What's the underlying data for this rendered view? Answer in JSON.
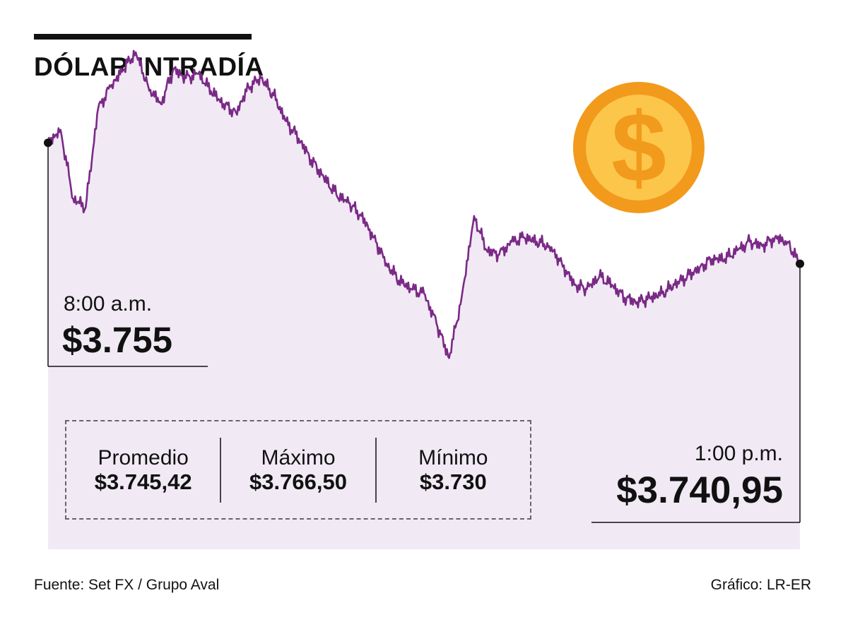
{
  "title": "DÓLAR INTRADÍA",
  "start": {
    "time": "8:00 a.m.",
    "value": "$3.755"
  },
  "end": {
    "time": "1:00 p.m.",
    "value": "$3.740,95"
  },
  "stats": [
    {
      "label": "Promedio",
      "value": "$3.745,42"
    },
    {
      "label": "Máximo",
      "value": "$3.766,50"
    },
    {
      "label": "Mínimo",
      "value": "$3.730"
    }
  ],
  "footer": {
    "source": "Fuente: Set FX / Grupo Aval",
    "credit": "Gráfico: LR-ER"
  },
  "colors": {
    "line": "#7a2a86",
    "area": "#f1eaf5",
    "coin_outer": "#f29a1c",
    "coin_inner": "#fcc64a"
  },
  "icon": "dollar-coin-icon",
  "chart_data": {
    "type": "area",
    "x": [
      "8:00",
      "8:05",
      "8:10",
      "8:15",
      "8:20",
      "8:25",
      "8:30",
      "8:35",
      "8:40",
      "8:45",
      "8:50",
      "8:55",
      "9:00",
      "9:05",
      "9:10",
      "9:15",
      "9:20",
      "9:25",
      "9:30",
      "9:35",
      "9:40",
      "9:45",
      "9:50",
      "9:55",
      "10:00",
      "10:05",
      "10:10",
      "10:15",
      "10:20",
      "10:25",
      "10:30",
      "10:35",
      "10:40",
      "10:45",
      "10:50",
      "10:55",
      "11:00",
      "11:05",
      "11:10",
      "11:15",
      "11:20",
      "11:25",
      "11:30",
      "11:35",
      "11:40",
      "11:45",
      "11:50",
      "11:55",
      "12:00",
      "12:05",
      "12:10",
      "12:15",
      "12:20",
      "12:25",
      "12:30",
      "12:35",
      "12:40",
      "12:45",
      "12:50",
      "12:55",
      "13:00"
    ],
    "y": [
      3755,
      3756.5,
      3748.5,
      3747.5,
      3759,
      3761.5,
      3763.5,
      3765.5,
      3761.5,
      3759.5,
      3763.5,
      3762.5,
      3763,
      3761,
      3759.5,
      3758.5,
      3761.5,
      3762.5,
      3760.5,
      3757.5,
      3755.5,
      3753,
      3751,
      3749,
      3748,
      3746.5,
      3744,
      3741,
      3739,
      3738,
      3737.5,
      3734,
      3730,
      3737,
      3746.5,
      3742.5,
      3742,
      3743.5,
      3744,
      3743.5,
      3743,
      3741,
      3738.5,
      3738,
      3739.5,
      3738.5,
      3737,
      3736.5,
      3737,
      3737.5,
      3738.5,
      3739.5,
      3740.5,
      3741.5,
      3741.5,
      3742.5,
      3743.5,
      3743,
      3744,
      3743.5,
      3740.95
    ],
    "ylim": [
      3726,
      3770
    ],
    "start_label": "$3.755",
    "end_label": "$3.740,95"
  }
}
